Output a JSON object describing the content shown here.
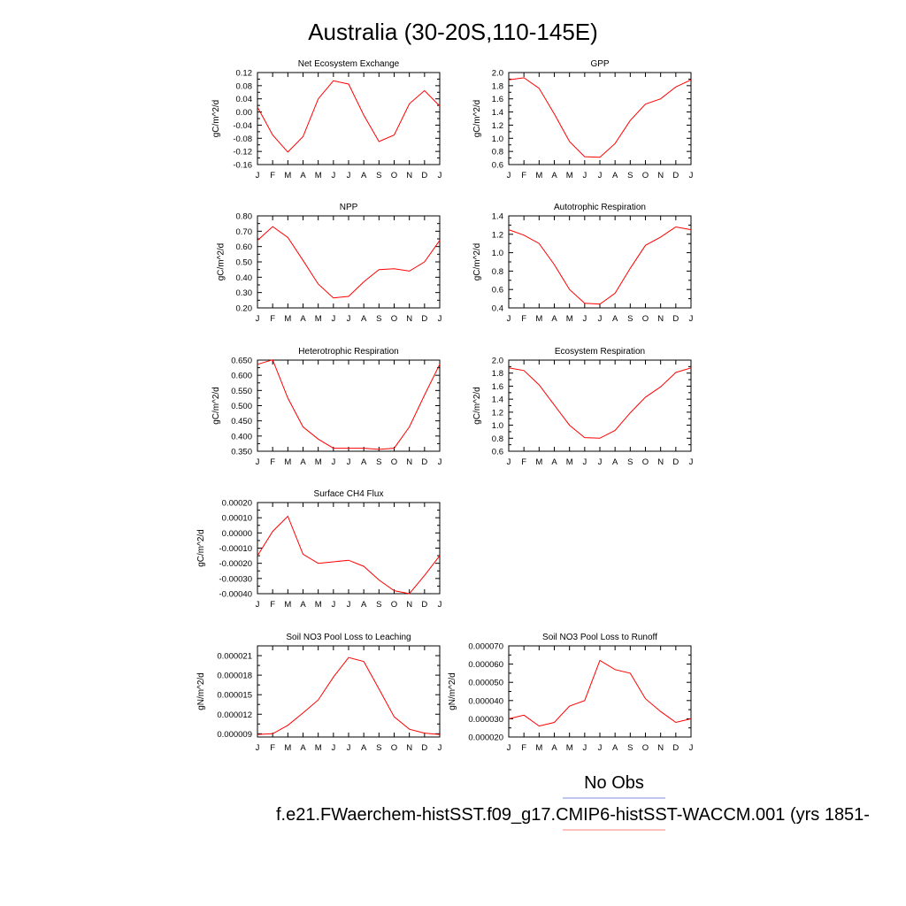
{
  "title": "Australia (30-20S,110-145E)",
  "legend": {
    "obs_label": "No Obs",
    "model_label": "f.e21.FWaerchem-histSST.f09_g17.CMIP6-histSST-WACCM.001 (yrs 1851-",
    "obs_color": "#7f8fe0",
    "model_color": "#ff8080"
  },
  "line_color": "#ff0000",
  "chart_data": [
    {
      "type": "line",
      "title": "Net Ecosystem Exchange",
      "ylabel": "gC/m^2/d",
      "x": [
        "J",
        "F",
        "M",
        "A",
        "M",
        "J",
        "J",
        "A",
        "S",
        "O",
        "N",
        "D",
        "J"
      ],
      "ylim": [
        -0.16,
        0.12
      ],
      "yticks": [
        "0.12",
        "0.08",
        "0.04",
        "0.00",
        "-0.04",
        "-0.08",
        "-0.12",
        "-0.16"
      ],
      "values": [
        0.015,
        -0.07,
        -0.122,
        -0.075,
        0.04,
        0.095,
        0.085,
        -0.01,
        -0.09,
        -0.07,
        0.025,
        0.065,
        0.018
      ]
    },
    {
      "type": "line",
      "title": "GPP",
      "ylabel": "gC/m^2/d",
      "x": [
        "J",
        "F",
        "M",
        "A",
        "M",
        "J",
        "J",
        "A",
        "S",
        "O",
        "N",
        "D",
        "J"
      ],
      "ylim": [
        0.6,
        2.0
      ],
      "yticks": [
        "2.0",
        "1.8",
        "1.6",
        "1.4",
        "1.2",
        "1.0",
        "0.8",
        "0.6"
      ],
      "values": [
        1.89,
        1.92,
        1.76,
        1.37,
        0.95,
        0.72,
        0.71,
        0.92,
        1.27,
        1.52,
        1.6,
        1.78,
        1.89
      ]
    },
    {
      "type": "line",
      "title": "NPP",
      "ylabel": "gC/m^2/d",
      "x": [
        "J",
        "F",
        "M",
        "A",
        "M",
        "J",
        "J",
        "A",
        "S",
        "O",
        "N",
        "D",
        "J"
      ],
      "ylim": [
        0.2,
        0.8
      ],
      "yticks": [
        "0.80",
        "0.70",
        "0.60",
        "0.50",
        "0.40",
        "0.30",
        "0.20"
      ],
      "values": [
        0.64,
        0.73,
        0.66,
        0.51,
        0.355,
        0.265,
        0.275,
        0.37,
        0.45,
        0.455,
        0.44,
        0.5,
        0.64
      ]
    },
    {
      "type": "line",
      "title": "Autotrophic Respiration",
      "ylabel": "gC/m^2/d",
      "x": [
        "J",
        "F",
        "M",
        "A",
        "M",
        "J",
        "J",
        "A",
        "S",
        "O",
        "N",
        "D",
        "J"
      ],
      "ylim": [
        0.4,
        1.4
      ],
      "yticks": [
        "1.4",
        "1.2",
        "1.0",
        "0.8",
        "0.6",
        "0.4"
      ],
      "values": [
        1.25,
        1.19,
        1.1,
        0.87,
        0.6,
        0.45,
        0.44,
        0.56,
        0.83,
        1.08,
        1.17,
        1.28,
        1.25
      ]
    },
    {
      "type": "line",
      "title": "Heterotrophic Respiration",
      "ylabel": "gC/m^2/d",
      "x": [
        "J",
        "F",
        "M",
        "A",
        "M",
        "J",
        "J",
        "A",
        "S",
        "O",
        "N",
        "D",
        "J"
      ],
      "ylim": [
        0.35,
        0.65
      ],
      "yticks": [
        "0.650",
        "0.600",
        "0.550",
        "0.500",
        "0.450",
        "0.400",
        "0.350"
      ],
      "values": [
        0.636,
        0.651,
        0.525,
        0.43,
        0.39,
        0.36,
        0.36,
        0.36,
        0.356,
        0.36,
        0.43,
        0.535,
        0.636
      ]
    },
    {
      "type": "line",
      "title": "Ecosystem Respiration",
      "ylabel": "gC/m^2/d",
      "x": [
        "J",
        "F",
        "M",
        "A",
        "M",
        "J",
        "J",
        "A",
        "S",
        "O",
        "N",
        "D",
        "J"
      ],
      "ylim": [
        0.6,
        2.0
      ],
      "yticks": [
        "2.0",
        "1.8",
        "1.6",
        "1.4",
        "1.2",
        "1.0",
        "0.8",
        "0.6"
      ],
      "values": [
        1.88,
        1.84,
        1.62,
        1.31,
        1.0,
        0.81,
        0.8,
        0.92,
        1.19,
        1.43,
        1.59,
        1.81,
        1.88
      ]
    },
    {
      "type": "line",
      "title": "Surface CH4 Flux",
      "ylabel": "gC/m^2/d",
      "x": [
        "J",
        "F",
        "M",
        "A",
        "M",
        "J",
        "J",
        "A",
        "S",
        "O",
        "N",
        "D",
        "J"
      ],
      "ylim": [
        -0.0004,
        0.0002
      ],
      "yticks": [
        "0.00020",
        "0.00010",
        "0.00000",
        "-0.00010",
        "-0.00020",
        "-0.00030",
        "-0.00040"
      ],
      "values": [
        -0.00015,
        1e-05,
        0.00011,
        -0.00014,
        -0.0002,
        -0.00019,
        -0.00018,
        -0.00022,
        -0.00031,
        -0.00038,
        -0.0004,
        -0.00028,
        -0.00015
      ]
    },
    {
      "type": "line",
      "title": "Soil NO3 Pool Loss to Leaching",
      "ylabel": "gN/m^2/d",
      "x": [
        "J",
        "F",
        "M",
        "A",
        "M",
        "J",
        "J",
        "A",
        "S",
        "O",
        "N",
        "D",
        "J"
      ],
      "ylim": [
        8.5e-06,
        2.25e-05
      ],
      "yticks": [
        "0.000021",
        "0.000018",
        "0.000015",
        "0.000012",
        "0.000009"
      ],
      "yticks_values": [
        2.1e-05,
        1.8e-05,
        1.5e-05,
        1.2e-05,
        9e-06
      ],
      "values": [
        8.9e-06,
        9e-06,
        1.03e-05,
        1.22e-05,
        1.42e-05,
        1.77e-05,
        2.07e-05,
        2.01e-05,
        1.59e-05,
        1.16e-05,
        9.7e-06,
        9.1e-06,
        8.9e-06
      ]
    },
    {
      "type": "line",
      "title": "Soil NO3 Pool Loss to Runoff",
      "ylabel": "gN/m^2/d",
      "x": [
        "J",
        "F",
        "M",
        "A",
        "M",
        "J",
        "J",
        "A",
        "S",
        "O",
        "N",
        "D",
        "J"
      ],
      "ylim": [
        2e-05,
        7e-05
      ],
      "yticks": [
        "0.000070",
        "0.000060",
        "0.000050",
        "0.000040",
        "0.000030",
        "0.000020"
      ],
      "values": [
        3e-05,
        3.2e-05,
        2.6e-05,
        2.8e-05,
        3.7e-05,
        4e-05,
        6.2e-05,
        5.7e-05,
        5.5e-05,
        4.1e-05,
        3.4e-05,
        2.8e-05,
        3e-05
      ]
    }
  ]
}
